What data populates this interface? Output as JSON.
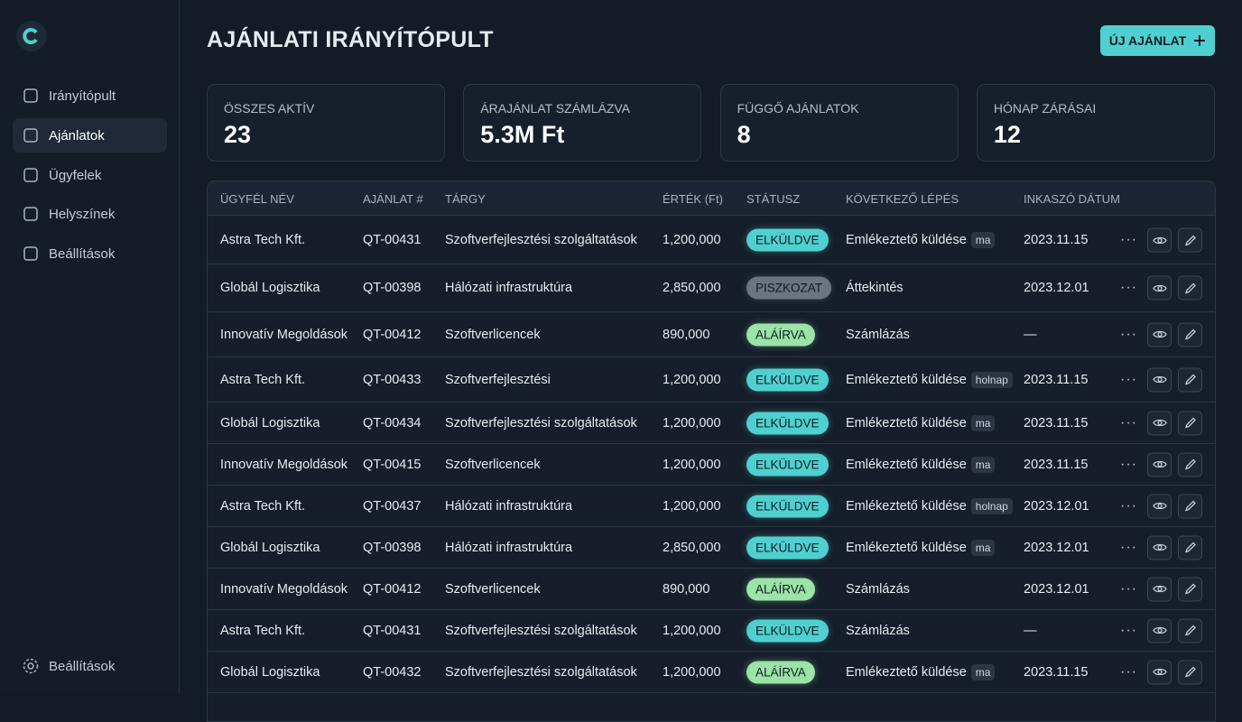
{
  "sidebar": {
    "nav": [
      "Irányítópult",
      "Ajánlatok",
      "Ügyfelek",
      "Helyszínek",
      "Beállítások"
    ],
    "footer": "Beállítások"
  },
  "header": {
    "title": "AJÁNLATI IRÁNYÍTÓPULT",
    "button": "ÚJ AJÁNLAT"
  },
  "stats": [
    {
      "label": "ÖSSZES AKTÍV",
      "value": "23"
    },
    {
      "label": "ÁRAJÁNLAT SZÁMLÁZVA",
      "value": "5.3M Ft"
    },
    {
      "label": "FÜGGŐ AJÁNLATOK",
      "value": "8"
    },
    {
      "label": "HÓNAP ZÁRÁSAI",
      "value": "12"
    }
  ],
  "table": {
    "columns": [
      "ÜGYFÉL NÉV",
      "AJÁNLAT #",
      "TÁRGY",
      "ÉRTÉK (Ft)",
      "STÁTUSZ",
      "KÖVETKEZŐ LÉPÉS",
      "INKASZÓ DÁTUM"
    ],
    "rows": [
      {
        "client": "Astra Tech Kft.",
        "quote": "QT-00431",
        "subject": "Szoftverfejlesztési szolgáltatások",
        "value": "1,200,000",
        "status": "ELKÜLDVE",
        "status_color": "#4fd0d0",
        "next": "Emlékeztető küldése",
        "tag": "ma",
        "date": "2023.11.15"
      },
      {
        "client": "Globál Logisztika",
        "quote": "QT-00398",
        "subject": "Hálózati infrastruktúra",
        "value": "2,850,000",
        "status": "PISZKOZAT",
        "status_color": "#6b7480",
        "next": "Áttekintés",
        "date": "2023.12.01"
      },
      {
        "client": "Innovatív Megoldások",
        "quote": "QT-00412",
        "subject": "Szoftverlicencek",
        "value": "890,000",
        "status": "ALÁÍRVA",
        "status_color": "#9be3a7",
        "next": "Számlázás",
        "date": "—"
      },
      {
        "client": "Astra Tech Kft.",
        "quote": "QT-00433",
        "subject": "Szoftverfejlesztési",
        "value": "1,200,000",
        "status": "ELKÜLDVE",
        "status_color": "#4fd0d0",
        "next": "Emlékeztető küldése",
        "tag": "holnap",
        "date": "2023.11.15"
      },
      {
        "client": "Globál Logisztika",
        "quote": "QT-00434",
        "subject": "Szoftverfejlesztési szolgáltatások",
        "value": "1,200,000",
        "status": "ELKÜLDVE",
        "status_color": "#4fd0d0",
        "next": "Emlékeztető küldése",
        "tag": "ma",
        "date": "2023.11.15"
      },
      {
        "client": "Innovatív Megoldások",
        "quote": "QT-00415",
        "subject": "Szoftverlicencek",
        "value": "1,200,000",
        "status": "ELKÜLDVE",
        "status_color": "#4fd0d0",
        "next": "Emlékeztető küldése",
        "tag": "ma",
        "date": "2023.11.15"
      },
      {
        "client": "Astra Tech Kft.",
        "quote": "QT-00437",
        "subject": "Hálózati infrastruktúra",
        "value": "1,200,000",
        "status": "ELKÜLDVE",
        "status_color": "#4fd0d0",
        "next": "Emlékeztető küldése",
        "tag": "holnap",
        "date": "2023.12.01"
      },
      {
        "client": "Globál Logisztika",
        "quote": "QT-00398",
        "subject": "Hálózati infrastruktúra",
        "value": "2,850,000",
        "status": "ELKÜLDVE",
        "status_color": "#4fd0d0",
        "next": "Emlékeztető küldése",
        "tag": "ma",
        "date": "2023.12.01"
      },
      {
        "client": "Innovatív Megoldások",
        "quote": "QT-00412",
        "subject": "Szoftverlicencek",
        "value": "890,000",
        "status": "ALÁÍRVA",
        "status_color": "#9be3a7",
        "next": "Számlázás",
        "date": "2023.12.01"
      },
      {
        "client": "Astra Tech Kft.",
        "quote": "QT-00431",
        "subject": "Szoftverfejlesztési szolgáltatások",
        "value": "1,200,000",
        "status": "ELKÜLDVE",
        "status_color": "#4fd0d0",
        "next": "Számlázás",
        "date": "—"
      },
      {
        "client": "Globál Logisztika",
        "quote": "QT-00432",
        "subject": "Szoftverfejlesztési szolgáltatások",
        "value": "1,200,000",
        "status": "ALÁÍRVA",
        "status_color": "#9be3a7",
        "next": "Emlékeztető küldése",
        "tag": "ma",
        "date": "2023.11.15"
      }
    ]
  }
}
